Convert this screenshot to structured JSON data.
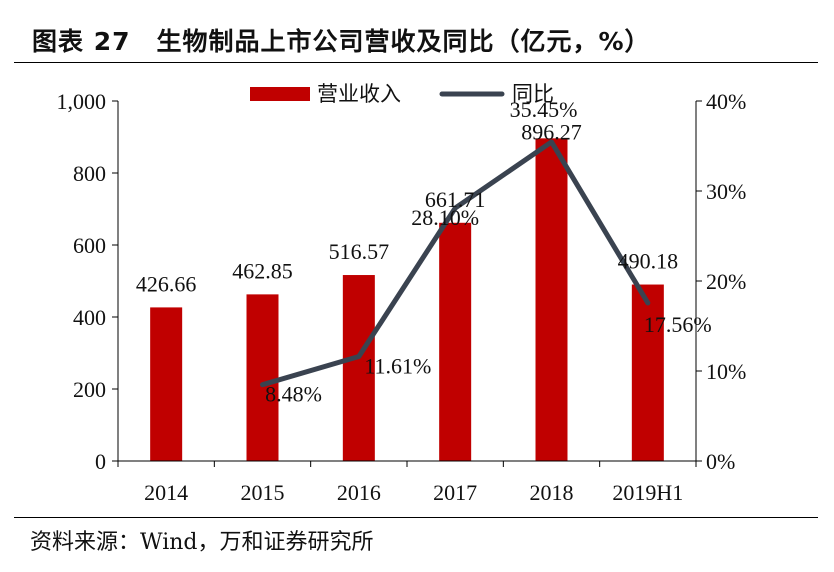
{
  "header": {
    "title": "图表 27　生物制品上市公司营收及同比（亿元，%）"
  },
  "footer": {
    "source": "资料来源：Wind，万和证券研究所"
  },
  "colors": {
    "bar": "#c00000",
    "line": "#3a4350",
    "text": "#111111",
    "axis": "#000000"
  },
  "chart_data": {
    "type": "bar",
    "categories": [
      "2014",
      "2015",
      "2016",
      "2017",
      "2018",
      "2019H1"
    ],
    "series": [
      {
        "name": "营业收入",
        "type": "bar",
        "axis": "left",
        "values": [
          426.66,
          462.85,
          516.57,
          661.71,
          896.27,
          490.18
        ],
        "labels": [
          "426.66",
          "462.85",
          "516.57",
          "661.71",
          "896.27",
          "490.18"
        ]
      },
      {
        "name": "同比",
        "type": "line",
        "axis": "right",
        "values": [
          null,
          8.48,
          11.61,
          28.1,
          35.45,
          17.56
        ],
        "labels": [
          "",
          "8.48%",
          "11.61%",
          "28.10%",
          "35.45%",
          "17.56%"
        ]
      }
    ],
    "y_left": {
      "range": [
        0,
        1000
      ],
      "ticks": [
        "0",
        "200",
        "400",
        "600",
        "800",
        "1,000"
      ]
    },
    "y_right": {
      "range": [
        0,
        40
      ],
      "ticks": [
        "0%",
        "10%",
        "20%",
        "30%",
        "40%"
      ]
    },
    "legend": {
      "position": "top-center"
    },
    "grid": false
  }
}
